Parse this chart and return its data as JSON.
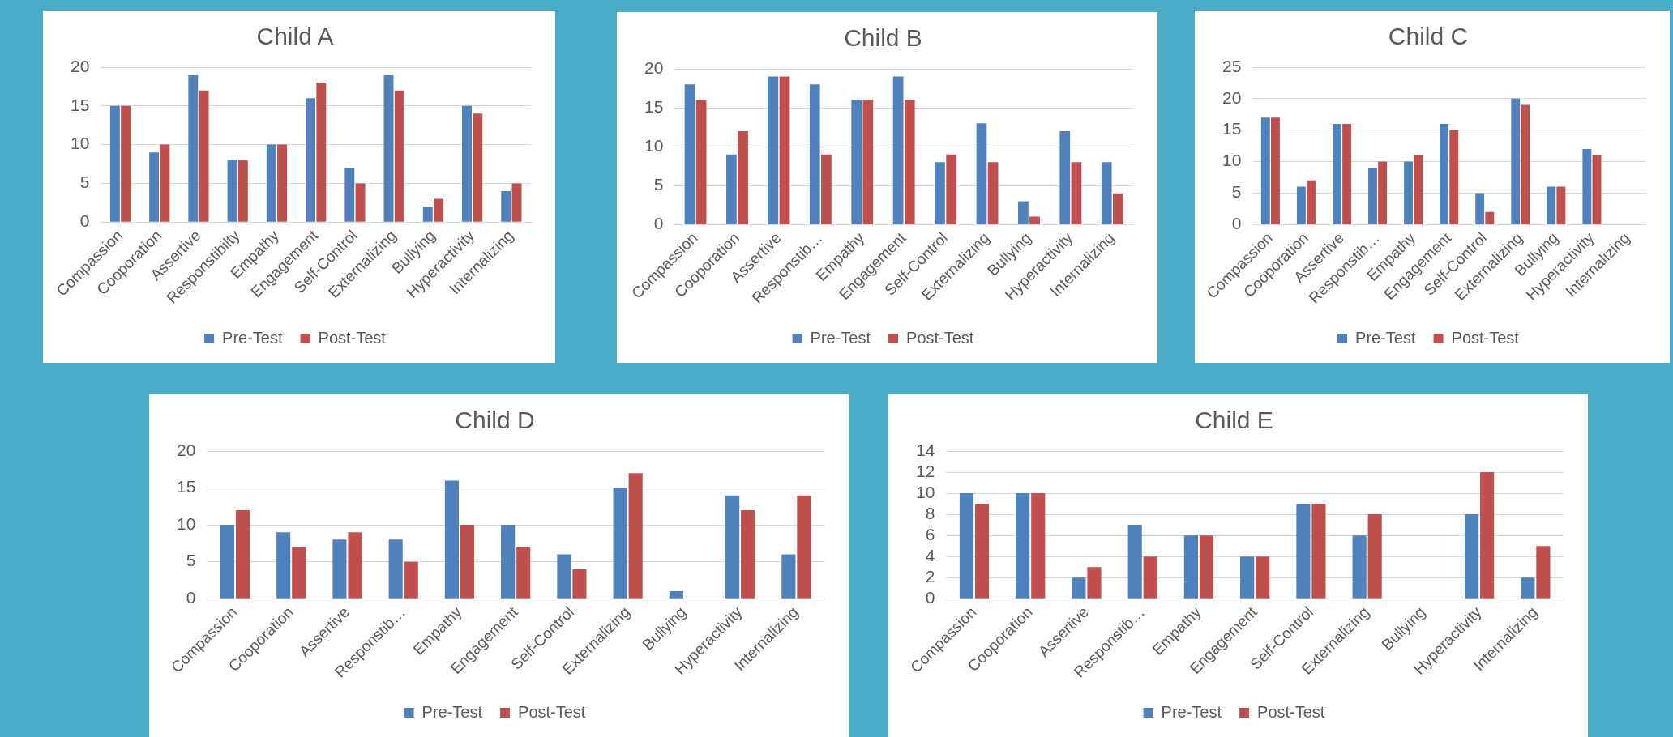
{
  "chart_data": [
    {
      "type": "bar",
      "title": "Child A",
      "categories": [
        "Compassion",
        "Cooporation",
        "Assertive",
        "Responstibilty",
        "Empathy",
        "Engagement",
        "Self-Control",
        "Externalizing",
        "Bullying",
        "Hyperactivity",
        "Internalizing"
      ],
      "series": [
        {
          "name": "Pre-Test",
          "color": "#4f81bd",
          "values": [
            15,
            9,
            19,
            8,
            10,
            16,
            7,
            19,
            2,
            15,
            4
          ]
        },
        {
          "name": "Post-Test",
          "color": "#c0504d",
          "values": [
            15,
            10,
            17,
            8,
            10,
            18,
            5,
            17,
            3,
            14,
            5
          ]
        }
      ],
      "ylim": [
        0,
        20
      ],
      "yticks": [
        0,
        5,
        10,
        15,
        20
      ],
      "grid": "y",
      "legend": "bottom"
    },
    {
      "type": "bar",
      "title": "Child B",
      "categories": [
        "Compassion",
        "Cooporation",
        "Assertive",
        "Responstib…",
        "Empathy",
        "Engagement",
        "Self-Control",
        "Externalizing",
        "Bullying",
        "Hyperactivity",
        "Internalizing"
      ],
      "series": [
        {
          "name": "Pre-Test",
          "color": "#4f81bd",
          "values": [
            18,
            9,
            19,
            18,
            16,
            19,
            8,
            13,
            3,
            12,
            8
          ]
        },
        {
          "name": "Post-Test",
          "color": "#c0504d",
          "values": [
            16,
            12,
            19,
            9,
            16,
            16,
            9,
            8,
            1,
            8,
            4
          ]
        }
      ],
      "ylim": [
        0,
        20
      ],
      "yticks": [
        0,
        5,
        10,
        15,
        20
      ],
      "grid": "y",
      "legend": "bottom"
    },
    {
      "type": "bar",
      "title": "Child C",
      "categories": [
        "Compassion",
        "Cooporation",
        "Assertive",
        "Responstib…",
        "Empathy",
        "Engagement",
        "Self-Control",
        "Externalizing",
        "Bullying",
        "Hyperactivity",
        "Internalizing"
      ],
      "series": [
        {
          "name": "Pre-Test",
          "color": "#4f81bd",
          "values": [
            17,
            6,
            16,
            9,
            10,
            16,
            5,
            20,
            6,
            12,
            null
          ]
        },
        {
          "name": "Post-Test",
          "color": "#c0504d",
          "values": [
            17,
            7,
            16,
            10,
            11,
            15,
            2,
            19,
            6,
            11,
            null
          ]
        }
      ],
      "ylim": [
        0,
        25
      ],
      "yticks": [
        0,
        5,
        10,
        15,
        20,
        25
      ],
      "grid": "y",
      "legend": "bottom"
    },
    {
      "type": "bar",
      "title": "Child D",
      "categories": [
        "Compassion",
        "Cooporation",
        "Assertive",
        "Responstib…",
        "Empathy",
        "Engagement",
        "Self-Control",
        "Externalizing",
        "Bullying",
        "Hyperactivity",
        "Internalizing"
      ],
      "series": [
        {
          "name": "Pre-Test",
          "color": "#4f81bd",
          "values": [
            10,
            9,
            8,
            8,
            16,
            10,
            6,
            15,
            1,
            14,
            6
          ]
        },
        {
          "name": "Post-Test",
          "color": "#c0504d",
          "values": [
            12,
            7,
            9,
            5,
            10,
            7,
            4,
            17,
            0,
            12,
            14
          ]
        }
      ],
      "ylim": [
        0,
        20
      ],
      "yticks": [
        0,
        5,
        10,
        15,
        20
      ],
      "grid": "y",
      "legend": "bottom"
    },
    {
      "type": "bar",
      "title": "Child E",
      "categories": [
        "Compassion",
        "Cooporation",
        "Assertive",
        "Responstib…",
        "Empathy",
        "Engagement",
        "Self-Control",
        "Externalizing",
        "Bullying",
        "Hyperactivity",
        "Internalizing"
      ],
      "series": [
        {
          "name": "Pre-Test",
          "color": "#4f81bd",
          "values": [
            10,
            10,
            2,
            7,
            6,
            4,
            9,
            6,
            0,
            8,
            2
          ]
        },
        {
          "name": "Post-Test",
          "color": "#c0504d",
          "values": [
            9,
            10,
            3,
            4,
            6,
            4,
            9,
            8,
            0,
            12,
            5
          ]
        }
      ],
      "ylim": [
        0,
        14
      ],
      "yticks": [
        0,
        2,
        4,
        6,
        8,
        10,
        12,
        14
      ],
      "grid": "y",
      "legend": "bottom"
    }
  ]
}
